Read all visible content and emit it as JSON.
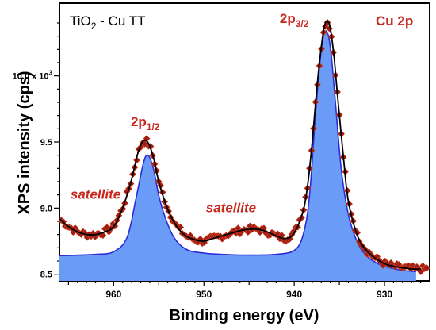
{
  "chart_data": {
    "type": "line",
    "title": "",
    "sample_label": {
      "main": "TiO",
      "sub": "2",
      "rest": " - Cu TT"
    },
    "region_label": "Cu 2p",
    "xlabel": "Binding energy (eV)",
    "ylabel": "XPS intensity (cps)",
    "x_reversed": true,
    "xlim": [
      966,
      925
    ],
    "ylim": [
      8.45,
      10.55
    ],
    "x_ticks": [
      960,
      950,
      940,
      930
    ],
    "y_ticks": [
      {
        "value": 8.5,
        "label": "8.5"
      },
      {
        "value": 9.0,
        "label": "9.0"
      },
      {
        "value": 9.5,
        "label": "9.5"
      },
      {
        "value": 10.0,
        "label": "10.0 x 10",
        "sup": "3"
      }
    ],
    "annotations": [
      {
        "text": "2p",
        "sub": "1/2",
        "x": 956.5,
        "y": 9.62
      },
      {
        "text": "2p",
        "sub": "3/2",
        "x": 940.0,
        "y": 10.4
      },
      {
        "text": "satellite",
        "x": 962.0,
        "y": 9.07,
        "italic": true
      },
      {
        "text": "satellite",
        "x": 947.0,
        "y": 8.97,
        "italic": true
      }
    ],
    "series": [
      {
        "role": "fill",
        "color": "#6a9cf7",
        "edge_color": "#2b2bd6",
        "x": [
          966,
          962,
          960,
          958.5,
          957.5,
          956.7,
          956.2,
          955.6,
          954.8,
          953.5,
          952,
          950,
          948,
          946,
          944,
          942,
          940,
          939,
          938.3,
          937.6,
          937,
          936.5,
          936.0,
          935.5,
          934.8,
          934,
          933,
          932,
          931,
          930,
          928,
          926.5
        ],
        "y": [
          8.64,
          8.65,
          8.67,
          8.78,
          9.08,
          9.34,
          9.4,
          9.3,
          9.04,
          8.8,
          8.69,
          8.66,
          8.65,
          8.645,
          8.645,
          8.65,
          8.68,
          8.8,
          9.1,
          9.75,
          10.2,
          10.34,
          10.22,
          9.85,
          9.3,
          8.95,
          8.74,
          8.64,
          8.59,
          8.56,
          8.53,
          8.52
        ]
      },
      {
        "role": "envelope",
        "color": "#000000",
        "x": [
          966,
          965,
          964,
          963,
          962,
          961,
          960,
          959,
          958,
          957.3,
          956.8,
          956.4,
          956.0,
          955.5,
          955,
          954,
          953,
          952,
          951,
          950,
          949,
          948,
          947,
          946,
          945,
          944,
          943,
          942,
          941,
          940,
          939,
          938.5,
          938,
          937.5,
          937,
          936.6,
          936.3,
          936.0,
          935.6,
          935.2,
          934.5,
          934,
          933,
          932,
          931,
          930,
          929,
          928,
          927,
          926
        ],
        "y": [
          8.92,
          8.86,
          8.82,
          8.8,
          8.8,
          8.82,
          8.86,
          9.0,
          9.22,
          9.42,
          9.5,
          9.51,
          9.47,
          9.36,
          9.2,
          8.99,
          8.86,
          8.79,
          8.76,
          8.75,
          8.77,
          8.79,
          8.81,
          8.83,
          8.84,
          8.84,
          8.82,
          8.79,
          8.77,
          8.81,
          8.98,
          9.18,
          9.5,
          9.9,
          10.22,
          10.39,
          10.41,
          10.36,
          10.15,
          9.85,
          9.35,
          9.05,
          8.79,
          8.68,
          8.62,
          8.58,
          8.56,
          8.55,
          8.54,
          8.54
        ]
      }
    ],
    "raw_points_note_color": "#a01e14"
  }
}
